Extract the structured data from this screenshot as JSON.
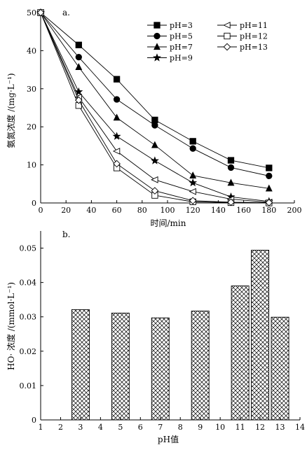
{
  "chart_data": [
    {
      "type": "line",
      "panel_label": "a.",
      "xlabel": "时间/min",
      "ylabel": "氨氮浓度 /(mg·L⁻¹)",
      "xlim": [
        0,
        200
      ],
      "ylim": [
        0,
        50
      ],
      "xticks": [
        0,
        20,
        40,
        60,
        80,
        100,
        120,
        140,
        160,
        180,
        200
      ],
      "yticks": [
        0,
        10,
        20,
        30,
        40,
        50
      ],
      "legend_position": "top-right",
      "series": [
        {
          "name": "pH=3",
          "marker": "square-filled",
          "x": [
            0,
            30,
            60,
            90,
            120,
            150,
            180
          ],
          "y": [
            50,
            41.5,
            32.5,
            21.8,
            16.2,
            11.2,
            9.2
          ]
        },
        {
          "name": "pH=5",
          "marker": "circle-filled",
          "x": [
            0,
            30,
            60,
            90,
            120,
            150,
            180
          ],
          "y": [
            50,
            38.3,
            27.2,
            20.4,
            14.3,
            9.3,
            7.1
          ]
        },
        {
          "name": "pH=7",
          "marker": "triangle-filled",
          "x": [
            0,
            30,
            60,
            90,
            120,
            150,
            180
          ],
          "y": [
            50,
            35.7,
            22.4,
            15.2,
            7.2,
            5.3,
            3.8
          ]
        },
        {
          "name": "pH=9",
          "marker": "star-filled",
          "x": [
            0,
            30,
            60,
            90,
            120,
            150,
            180
          ],
          "y": [
            50,
            29.2,
            17.5,
            11.1,
            5.3,
            1.6,
            0.4
          ]
        },
        {
          "name": "pH=11",
          "marker": "triangle-left-open",
          "x": [
            0,
            30,
            60,
            90,
            120,
            150,
            180
          ],
          "y": [
            50,
            27.8,
            13.6,
            6.1,
            3.0,
            1.0,
            0.2
          ]
        },
        {
          "name": "pH=12",
          "marker": "square-open",
          "x": [
            0,
            30,
            60,
            90,
            120,
            150,
            180
          ],
          "y": [
            50,
            25.6,
            9.2,
            2.0,
            0.3,
            0.1,
            0.0
          ]
        },
        {
          "name": "pH=13",
          "marker": "diamond-open",
          "x": [
            0,
            30,
            60,
            90,
            120,
            150,
            180
          ],
          "y": [
            50,
            27.0,
            10.3,
            3.2,
            0.6,
            0.2,
            0.1
          ]
        }
      ]
    },
    {
      "type": "bar",
      "panel_label": "b.",
      "xlabel": "pH值",
      "ylabel": "HO· 浓度 /(mmol·L⁻¹)",
      "xlim": [
        1,
        14
      ],
      "ylim": [
        0,
        0.055
      ],
      "xticks": [
        1,
        2,
        3,
        4,
        5,
        6,
        7,
        8,
        9,
        10,
        11,
        12,
        13,
        14
      ],
      "yticks": [
        "0",
        "0.01",
        "0.02",
        "0.03",
        "0.04",
        "0.05"
      ],
      "fill": "crosshatch",
      "x": [
        3,
        5,
        7,
        9,
        11,
        12,
        13
      ],
      "values": [
        0.0321,
        0.0311,
        0.0297,
        0.0317,
        0.039,
        0.0494,
        0.0299
      ]
    }
  ]
}
